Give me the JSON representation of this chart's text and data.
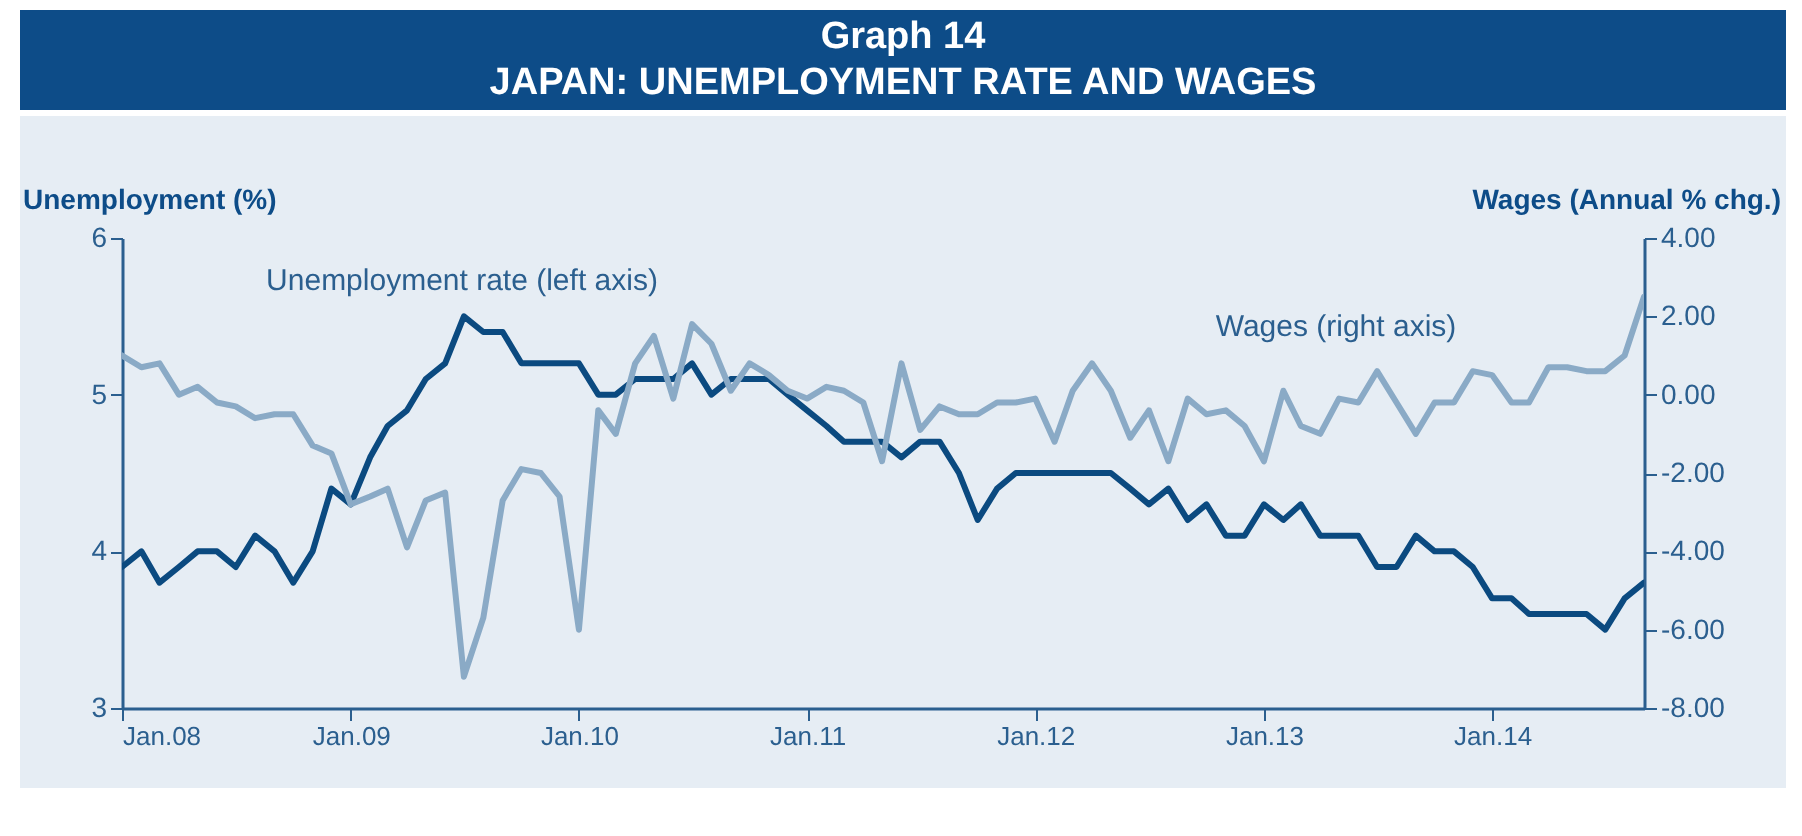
{
  "chart_data": {
    "type": "line",
    "title": "Graph 14",
    "subtitle": "JAPAN: UNEMPLOYMENT RATE AND WAGES",
    "ylabel": "Unemployment (%)",
    "y2label": "Wages (Annual % chg.)",
    "x": [
      "2008-01",
      "2008-02",
      "2008-03",
      "2008-04",
      "2008-05",
      "2008-06",
      "2008-07",
      "2008-08",
      "2008-09",
      "2008-10",
      "2008-11",
      "2008-12",
      "2009-01",
      "2009-02",
      "2009-03",
      "2009-04",
      "2009-05",
      "2009-06",
      "2009-07",
      "2009-08",
      "2009-09",
      "2009-10",
      "2009-11",
      "2009-12",
      "2010-01",
      "2010-02",
      "2010-03",
      "2010-04",
      "2010-05",
      "2010-06",
      "2010-07",
      "2010-08",
      "2010-09",
      "2010-10",
      "2010-11",
      "2010-12",
      "2011-01",
      "2011-02",
      "2011-03",
      "2011-04",
      "2011-05",
      "2011-06",
      "2011-07",
      "2011-08",
      "2011-09",
      "2011-10",
      "2011-11",
      "2011-12",
      "2012-01",
      "2012-02",
      "2012-03",
      "2012-04",
      "2012-05",
      "2012-06",
      "2012-07",
      "2012-08",
      "2012-09",
      "2012-10",
      "2012-11",
      "2012-12",
      "2013-01",
      "2013-02",
      "2013-03",
      "2013-04",
      "2013-05",
      "2013-06",
      "2013-07",
      "2013-08",
      "2013-09",
      "2013-10",
      "2013-11",
      "2013-12",
      "2014-01",
      "2014-02",
      "2014-03",
      "2014-04",
      "2014-05",
      "2014-06",
      "2014-07",
      "2014-08",
      "2014-09"
    ],
    "series": [
      {
        "name": "Unemployment rate (left axis)",
        "color": "#0b4a80",
        "values": [
          3.9,
          4.0,
          3.8,
          3.9,
          4.0,
          4.0,
          3.9,
          4.1,
          4.0,
          3.8,
          4.0,
          4.4,
          4.3,
          4.6,
          4.8,
          4.9,
          5.1,
          5.2,
          5.5,
          5.4,
          5.4,
          5.2,
          5.2,
          5.2,
          5.2,
          5.0,
          5.0,
          5.1,
          5.1,
          5.1,
          5.2,
          5.0,
          5.1,
          5.1,
          5.1,
          5.0,
          4.9,
          4.8,
          4.7,
          4.7,
          4.7,
          4.6,
          4.7,
          4.7,
          4.5,
          4.2,
          4.4,
          4.5,
          4.5,
          4.5,
          4.5,
          4.5,
          4.5,
          4.4,
          4.3,
          4.4,
          4.2,
          4.3,
          4.1,
          4.1,
          4.3,
          4.2,
          4.3,
          4.1,
          4.1,
          4.1,
          3.9,
          3.9,
          4.1,
          4.0,
          4.0,
          3.9,
          3.7,
          3.7,
          3.6,
          3.6,
          3.6,
          3.6,
          3.5,
          3.7,
          3.8
        ]
      },
      {
        "name": "Wages (right axis)",
        "color": "#8aaac6",
        "axis": "y2",
        "values": [
          1.0,
          0.7,
          0.8,
          0.0,
          0.2,
          -0.2,
          -0.3,
          -0.6,
          -0.5,
          -0.5,
          -1.3,
          -1.5,
          -2.8,
          -2.6,
          -2.4,
          -3.9,
          -2.7,
          -2.5,
          -7.2,
          -5.7,
          -2.7,
          -1.9,
          -2.0,
          -2.6,
          -6.0,
          -0.4,
          -1.0,
          0.8,
          1.5,
          -0.1,
          1.8,
          1.3,
          0.1,
          0.8,
          0.5,
          0.1,
          -0.1,
          0.2,
          0.1,
          -0.2,
          -1.7,
          0.8,
          -0.9,
          -0.3,
          -0.5,
          -0.5,
          -0.2,
          -0.2,
          -0.1,
          -1.2,
          0.1,
          0.8,
          0.1,
          -1.1,
          -0.4,
          -1.7,
          -0.1,
          -0.5,
          -0.4,
          -0.8,
          -1.7,
          0.1,
          -0.8,
          -1.0,
          -0.1,
          -0.2,
          0.6,
          -0.2,
          -1.0,
          -0.2,
          -0.2,
          0.6,
          0.5,
          -0.2,
          -0.2,
          0.7,
          0.7,
          0.6,
          0.6,
          1.0,
          2.5
        ]
      }
    ],
    "xlim": [
      "2008-01",
      "2014-09"
    ],
    "xticks": [
      {
        "value": "2008-01",
        "label": "Jan.08"
      },
      {
        "value": "2009-01",
        "label": "Jan.09"
      },
      {
        "value": "2010-01",
        "label": "Jan.10"
      },
      {
        "value": "2011-01",
        "label": "Jan.11"
      },
      {
        "value": "2012-01",
        "label": "Jan.12"
      },
      {
        "value": "2013-01",
        "label": "Jan.13"
      },
      {
        "value": "2014-01",
        "label": "Jan.14"
      }
    ],
    "ylim": [
      3,
      6
    ],
    "yticks": [
      3,
      4,
      5,
      6
    ],
    "y2lim": [
      -8,
      4
    ],
    "y2ticks": [
      {
        "value": -8,
        "label": "-8.00"
      },
      {
        "value": -6,
        "label": "-6.00"
      },
      {
        "value": -4,
        "label": "-4.00"
      },
      {
        "value": -2,
        "label": "-2.00"
      },
      {
        "value": 0,
        "label": "0.00"
      },
      {
        "value": 2,
        "label": "2.00"
      },
      {
        "value": 4,
        "label": "4.00"
      }
    ],
    "grid": false,
    "legend": false,
    "marker": "none",
    "line_style": "solid"
  }
}
